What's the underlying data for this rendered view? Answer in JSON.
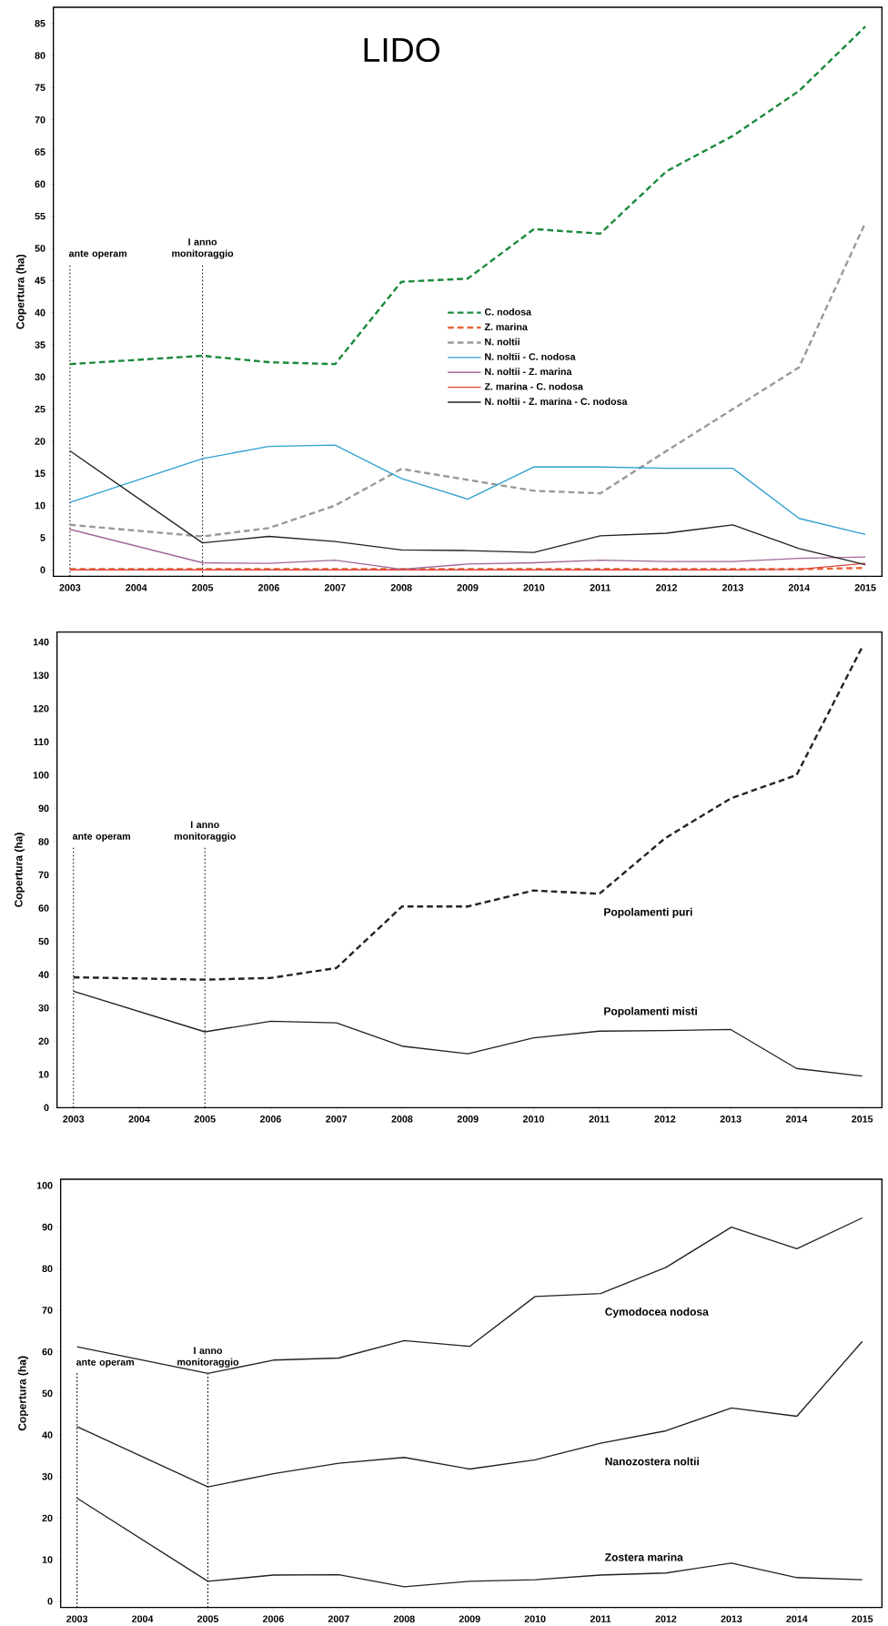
{
  "chart_data": [
    {
      "type": "line",
      "title": "LIDO",
      "ylabel": "Copertura (ha)",
      "x": [
        2003,
        2005,
        2006,
        2007,
        2008,
        2009,
        2010,
        2011,
        2012,
        2013,
        2014,
        2015
      ],
      "xlim": [
        2002.75,
        2015.25
      ],
      "ylim": [
        -1,
        87.5
      ],
      "xticks": [
        2003,
        2004,
        2005,
        2006,
        2007,
        2008,
        2009,
        2010,
        2011,
        2012,
        2013,
        2014,
        2015
      ],
      "yticks": [
        0,
        5,
        10,
        15,
        20,
        25,
        30,
        35,
        40,
        45,
        50,
        55,
        60,
        65,
        70,
        75,
        80,
        85
      ],
      "legend": "center",
      "marker": "none",
      "series": [
        {
          "name": "C. nodosa",
          "color": "#1a8a3c",
          "line_style": "dashed",
          "values": [
            32,
            33.3,
            32.3,
            32,
            44.8,
            45.3,
            53,
            52.3,
            62,
            67.5,
            74.5,
            84.5
          ]
        },
        {
          "name": "Z. marina",
          "color": "#e8643a",
          "line_style": "dashed",
          "values": [
            0.1,
            0.1,
            0.1,
            0.1,
            0.1,
            0.1,
            0.1,
            0.1,
            0.1,
            0.1,
            0.1,
            0.3
          ]
        },
        {
          "name": "N. noltii",
          "color": "#999999",
          "line_style": "dashed",
          "values": [
            7,
            5.2,
            6.5,
            10,
            15.7,
            14,
            12.3,
            11.9,
            18.5,
            25,
            31.5,
            54
          ]
        },
        {
          "name": "N. noltii - C. nodosa",
          "color": "#2fa0d0",
          "line_style": "solid",
          "values": [
            10.5,
            17.3,
            19.2,
            19.4,
            14.2,
            11,
            16,
            16,
            15.8,
            15.8,
            8,
            5.5
          ]
        },
        {
          "name": "N. noltii - Z. marina",
          "color": "#a0679a",
          "line_style": "solid",
          "values": [
            6.3,
            1.1,
            1.0,
            1.5,
            0.1,
            0.9,
            1.1,
            1.5,
            1.3,
            1.3,
            1.8,
            2.0
          ]
        },
        {
          "name": "Z. marina - C. nodosa",
          "color": "#d9483b",
          "line_style": "solid",
          "values": [
            0,
            0,
            0,
            0,
            0,
            0,
            0,
            0,
            0,
            0,
            0.1,
            1.0
          ]
        },
        {
          "name": "N. noltii - Z. marina - C. nodosa",
          "color": "#222222",
          "line_style": "solid",
          "values": [
            18.5,
            4.2,
            5.2,
            4.4,
            3.1,
            3.0,
            2.7,
            5.3,
            5.7,
            7.0,
            3.3,
            0.8
          ]
        }
      ],
      "ref_lines": [
        {
          "axis": "x",
          "value": 2003,
          "label": "ante operam",
          "line_style": "dotted"
        },
        {
          "axis": "x",
          "value": 2005,
          "label": "I anno monitoraggio",
          "line_style": "dotted"
        }
      ]
    },
    {
      "type": "line",
      "ylabel": "Copertura (ha)",
      "x": [
        2003,
        2005,
        2006,
        2007,
        2008,
        2009,
        2010,
        2011,
        2012,
        2013,
        2014,
        2015
      ],
      "xlim": [
        2002.75,
        2015.3
      ],
      "ylim": [
        0,
        143
      ],
      "xticks": [
        2003,
        2004,
        2005,
        2006,
        2007,
        2008,
        2009,
        2010,
        2011,
        2012,
        2013,
        2014,
        2015
      ],
      "yticks": [
        0,
        10,
        20,
        30,
        40,
        50,
        60,
        70,
        80,
        90,
        100,
        110,
        120,
        130,
        140
      ],
      "marker": "none",
      "series": [
        {
          "name": "Popolamenti puri",
          "color": "#222222",
          "line_style": "dashed",
          "values": [
            39.2,
            38.5,
            39,
            42,
            60.5,
            60.5,
            65.3,
            64.3,
            81,
            93,
            100,
            138.5
          ]
        },
        {
          "name": "Popolamenti misti",
          "color": "#222222",
          "line_style": "solid",
          "values": [
            35,
            22.8,
            26,
            25.5,
            18.5,
            16.2,
            21,
            23,
            23.2,
            23.5,
            11.8,
            9.5
          ]
        }
      ],
      "ref_lines": [
        {
          "axis": "x",
          "value": 2003,
          "label": "ante operam",
          "line_style": "dotted"
        },
        {
          "axis": "x",
          "value": 2005,
          "label": "I anno monitoraggio",
          "line_style": "dotted"
        }
      ]
    },
    {
      "type": "line",
      "ylabel": "Copertura (ha)",
      "x": [
        2003,
        2005,
        2006,
        2007,
        2008,
        2009,
        2010,
        2011,
        2012,
        2013,
        2014,
        2015
      ],
      "xlim": [
        2002.75,
        2015.3
      ],
      "ylim": [
        -1.5,
        101.5
      ],
      "xticks": [
        2003,
        2004,
        2005,
        2006,
        2007,
        2008,
        2009,
        2010,
        2011,
        2012,
        2013,
        2014,
        2015
      ],
      "yticks": [
        0,
        10,
        20,
        30,
        40,
        50,
        60,
        70,
        80,
        90,
        100
      ],
      "marker": "none",
      "series": [
        {
          "name": "Cymodocea nodosa",
          "color": "#222222",
          "line_style": "solid",
          "values": [
            61.2,
            54.8,
            58,
            58.5,
            62.7,
            61.3,
            73.3,
            74,
            80.3,
            90,
            84.8,
            92.2
          ]
        },
        {
          "name": "Nanozostera noltii",
          "color": "#222222",
          "line_style": "solid",
          "values": [
            42,
            27.5,
            30.7,
            33.2,
            34.6,
            31.8,
            34,
            38,
            41,
            46.5,
            44.5,
            62.5
          ]
        },
        {
          "name": "Zostera marina",
          "color": "#222222",
          "line_style": "solid",
          "values": [
            24.8,
            4.8,
            6.3,
            6.4,
            3.5,
            4.8,
            5.2,
            6.3,
            6.8,
            9.2,
            5.7,
            5.2
          ]
        }
      ],
      "ref_lines": [
        {
          "axis": "x",
          "value": 2003,
          "label": "ante operam",
          "line_style": "dotted"
        },
        {
          "axis": "x",
          "value": 2005,
          "label": "I anno monitoraggio",
          "line_style": "dotted"
        }
      ]
    }
  ]
}
